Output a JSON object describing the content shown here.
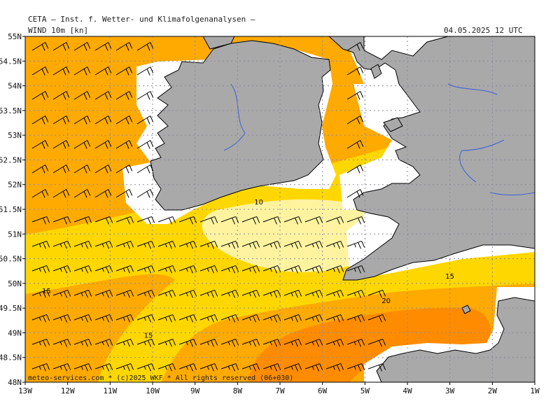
{
  "header": {
    "institute": "CETA — Inst. f. Wetter- und Klimafolgenanalysen —",
    "parameter": "WIND 10m [kn]",
    "valid_time": "04.05.2025 12 UTC"
  },
  "footer": "meteo-services.com * (c)2025 WKF * All rights reserved (06+030)",
  "axes": {
    "lon_labels": [
      "13W",
      "12W",
      "11W",
      "10W",
      "9W",
      "8W",
      "7W",
      "6W",
      "5W",
      "4W",
      "3W",
      "2W",
      "1W"
    ],
    "lat_labels": [
      "55N",
      "54.5N",
      "54N",
      "53.5N",
      "53N",
      "52.5N",
      "52N",
      "51.5N",
      "51N",
      "50.5N",
      "50N",
      "49.5N",
      "49N",
      "48.5N",
      "48N"
    ]
  },
  "contour_labels": [
    {
      "text": "10",
      "lon": -7.5,
      "lat": 51.6
    },
    {
      "text": "15",
      "lon": -12.5,
      "lat": 49.8
    },
    {
      "text": "15",
      "lon": -10.1,
      "lat": 48.9
    },
    {
      "text": "15",
      "lon": -3.0,
      "lat": 50.1
    },
    {
      "text": "20",
      "lon": -4.5,
      "lat": 49.6
    }
  ],
  "colors": {
    "land": "#a9a9a9",
    "coast_line": "#000000",
    "river": "#3a5fd8",
    "band_5_10": "#fff3a0",
    "band_10_15": "#ffd700",
    "band_15_20": "#ffaa00",
    "band_20_25": "#ff8c00"
  }
}
